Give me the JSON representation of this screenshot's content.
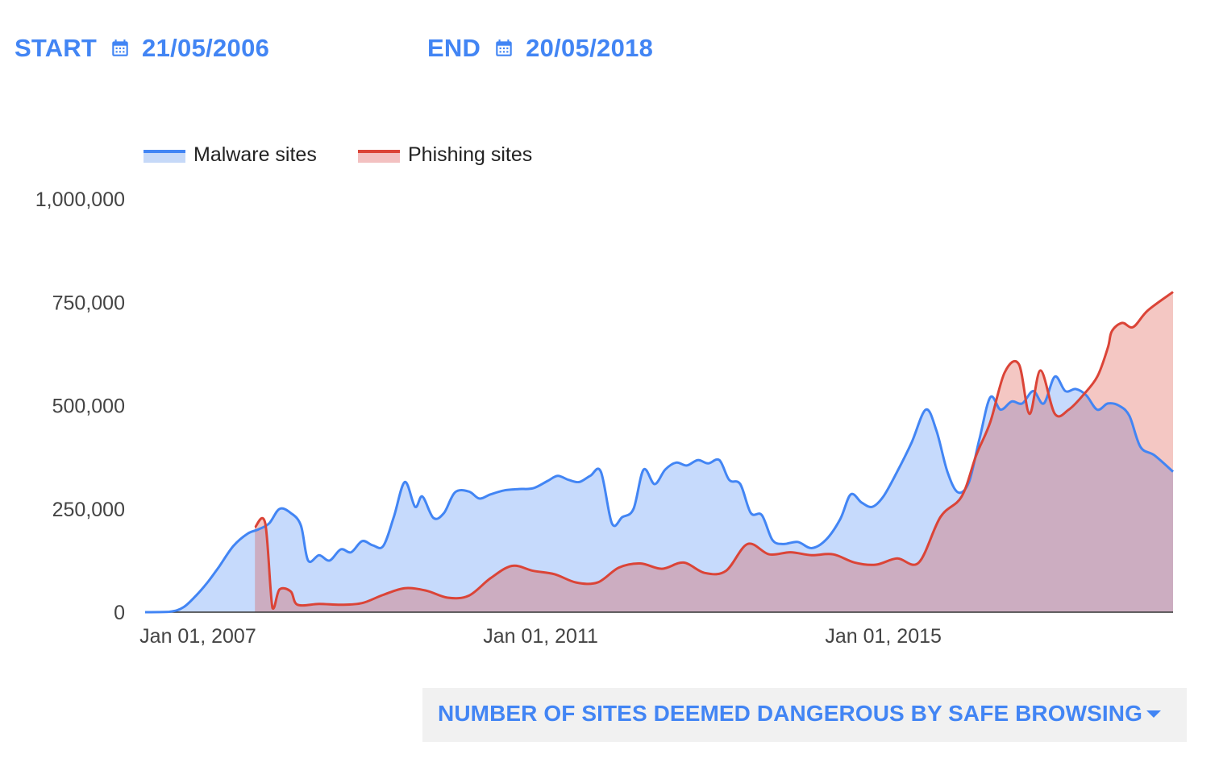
{
  "date_range": {
    "start_label": "START",
    "start_value": "21/05/2006",
    "end_label": "END",
    "end_value": "20/05/2018",
    "icon": "calendar-icon",
    "color": "#4285f4"
  },
  "metric_selector": {
    "label": "NUMBER OF SITES DEEMED DANGEROUS BY SAFE BROWSING",
    "icon": "chevron-down-icon"
  },
  "chart_data": {
    "type": "area",
    "title": "",
    "xlabel": "",
    "ylabel": "",
    "ylim": [
      0,
      1000000
    ],
    "xlim": [
      "2006-05-21",
      "2018-05-20"
    ],
    "y_ticks": [
      0,
      250000,
      500000,
      750000,
      1000000
    ],
    "y_tick_labels": [
      "0",
      "250,000",
      "500,000",
      "750,000",
      "1,000,000"
    ],
    "x_ticks": [
      "2007-01-01",
      "2011-01-01",
      "2015-01-01"
    ],
    "x_tick_labels": [
      "Jan 01, 2007",
      "Jan 01, 2011",
      "Jan 01, 2015"
    ],
    "legend": {
      "position": "top-left"
    },
    "grid": false,
    "series": [
      {
        "name": "Malware sites",
        "color": "#4285f4",
        "fill": "#c6d9f8",
        "points": [
          [
            "2006-05-21",
            0
          ],
          [
            "2006-09-01",
            1000
          ],
          [
            "2006-11-01",
            12000
          ],
          [
            "2007-01-01",
            45000
          ],
          [
            "2007-02-15",
            75000
          ],
          [
            "2007-04-01",
            110000
          ],
          [
            "2007-06-01",
            160000
          ],
          [
            "2007-08-01",
            190000
          ],
          [
            "2007-09-15",
            200000
          ],
          [
            "2007-11-01",
            215000
          ],
          [
            "2007-12-15",
            250000
          ],
          [
            "2008-02-01",
            240000
          ],
          [
            "2008-03-15",
            210000
          ],
          [
            "2008-04-15",
            125000
          ],
          [
            "2008-06-01",
            138000
          ],
          [
            "2008-07-15",
            125000
          ],
          [
            "2008-09-01",
            152000
          ],
          [
            "2008-10-15",
            145000
          ],
          [
            "2008-12-01",
            172000
          ],
          [
            "2009-01-15",
            162000
          ],
          [
            "2009-03-01",
            160000
          ],
          [
            "2009-04-15",
            230000
          ],
          [
            "2009-06-01",
            315000
          ],
          [
            "2009-07-15",
            255000
          ],
          [
            "2009-08-15",
            280000
          ],
          [
            "2009-10-01",
            228000
          ],
          [
            "2009-11-15",
            240000
          ],
          [
            "2010-01-01",
            290000
          ],
          [
            "2010-03-01",
            292000
          ],
          [
            "2010-04-15",
            275000
          ],
          [
            "2010-06-01",
            285000
          ],
          [
            "2010-08-01",
            295000
          ],
          [
            "2010-10-01",
            298000
          ],
          [
            "2010-12-01",
            300000
          ],
          [
            "2011-02-01",
            318000
          ],
          [
            "2011-03-15",
            330000
          ],
          [
            "2011-05-01",
            320000
          ],
          [
            "2011-06-15",
            315000
          ],
          [
            "2011-08-01",
            330000
          ],
          [
            "2011-09-15",
            340000
          ],
          [
            "2011-11-01",
            215000
          ],
          [
            "2011-12-15",
            230000
          ],
          [
            "2012-02-01",
            250000
          ],
          [
            "2012-03-15",
            345000
          ],
          [
            "2012-05-01",
            310000
          ],
          [
            "2012-06-15",
            345000
          ],
          [
            "2012-08-01",
            362000
          ],
          [
            "2012-09-15",
            355000
          ],
          [
            "2012-11-01",
            368000
          ],
          [
            "2012-12-15",
            360000
          ],
          [
            "2013-02-01",
            368000
          ],
          [
            "2013-03-15",
            320000
          ],
          [
            "2013-05-01",
            310000
          ],
          [
            "2013-06-15",
            240000
          ],
          [
            "2013-08-01",
            235000
          ],
          [
            "2013-09-15",
            175000
          ],
          [
            "2013-11-01",
            165000
          ],
          [
            "2014-01-01",
            170000
          ],
          [
            "2014-03-01",
            155000
          ],
          [
            "2014-05-01",
            175000
          ],
          [
            "2014-07-01",
            225000
          ],
          [
            "2014-08-15",
            285000
          ],
          [
            "2014-10-01",
            265000
          ],
          [
            "2014-11-15",
            255000
          ],
          [
            "2015-01-01",
            280000
          ],
          [
            "2015-03-01",
            340000
          ],
          [
            "2015-05-01",
            410000
          ],
          [
            "2015-07-01",
            490000
          ],
          [
            "2015-08-15",
            440000
          ],
          [
            "2015-10-01",
            340000
          ],
          [
            "2015-11-15",
            290000
          ],
          [
            "2016-01-01",
            315000
          ],
          [
            "2016-02-15",
            420000
          ],
          [
            "2016-04-01",
            520000
          ],
          [
            "2016-05-15",
            490000
          ],
          [
            "2016-07-01",
            510000
          ],
          [
            "2016-08-15",
            505000
          ],
          [
            "2016-10-01",
            535000
          ],
          [
            "2016-11-15",
            505000
          ],
          [
            "2017-01-01",
            570000
          ],
          [
            "2017-02-15",
            535000
          ],
          [
            "2017-04-01",
            540000
          ],
          [
            "2017-05-15",
            525000
          ],
          [
            "2017-07-01",
            490000
          ],
          [
            "2017-08-15",
            505000
          ],
          [
            "2017-10-01",
            500000
          ],
          [
            "2017-11-15",
            475000
          ],
          [
            "2018-01-01",
            400000
          ],
          [
            "2018-03-01",
            380000
          ],
          [
            "2018-05-20",
            340000
          ]
        ]
      },
      {
        "name": "Phishing sites",
        "color": "#db4437",
        "fill": "#f3c1c1",
        "points": [
          [
            "2007-09-01",
            205000
          ],
          [
            "2007-10-15",
            215000
          ],
          [
            "2007-11-15",
            10000
          ],
          [
            "2007-12-15",
            55000
          ],
          [
            "2008-02-01",
            50000
          ],
          [
            "2008-03-01",
            18000
          ],
          [
            "2008-06-01",
            20000
          ],
          [
            "2008-09-01",
            18000
          ],
          [
            "2008-12-01",
            22000
          ],
          [
            "2009-03-01",
            42000
          ],
          [
            "2009-06-01",
            58000
          ],
          [
            "2009-09-01",
            52000
          ],
          [
            "2009-12-01",
            35000
          ],
          [
            "2010-03-01",
            40000
          ],
          [
            "2010-06-01",
            82000
          ],
          [
            "2010-09-01",
            112000
          ],
          [
            "2010-12-01",
            100000
          ],
          [
            "2011-03-01",
            92000
          ],
          [
            "2011-06-01",
            72000
          ],
          [
            "2011-09-01",
            72000
          ],
          [
            "2011-12-01",
            108000
          ],
          [
            "2012-03-01",
            118000
          ],
          [
            "2012-06-01",
            105000
          ],
          [
            "2012-09-01",
            120000
          ],
          [
            "2012-12-01",
            95000
          ],
          [
            "2013-03-01",
            100000
          ],
          [
            "2013-06-01",
            165000
          ],
          [
            "2013-09-01",
            140000
          ],
          [
            "2013-12-01",
            145000
          ],
          [
            "2014-03-01",
            138000
          ],
          [
            "2014-06-01",
            140000
          ],
          [
            "2014-09-01",
            120000
          ],
          [
            "2014-12-01",
            115000
          ],
          [
            "2015-03-01",
            130000
          ],
          [
            "2015-06-01",
            120000
          ],
          [
            "2015-09-01",
            230000
          ],
          [
            "2015-12-01",
            280000
          ],
          [
            "2016-02-01",
            380000
          ],
          [
            "2016-04-01",
            460000
          ],
          [
            "2016-06-01",
            580000
          ],
          [
            "2016-08-01",
            600000
          ],
          [
            "2016-09-15",
            480000
          ],
          [
            "2016-11-01",
            585000
          ],
          [
            "2017-01-01",
            480000
          ],
          [
            "2017-03-01",
            490000
          ],
          [
            "2017-05-01",
            525000
          ],
          [
            "2017-07-01",
            570000
          ],
          [
            "2017-08-15",
            640000
          ],
          [
            "2017-09-01",
            680000
          ],
          [
            "2017-10-15",
            700000
          ],
          [
            "2017-12-01",
            690000
          ],
          [
            "2018-02-01",
            730000
          ],
          [
            "2018-05-20",
            775000
          ]
        ]
      }
    ]
  }
}
